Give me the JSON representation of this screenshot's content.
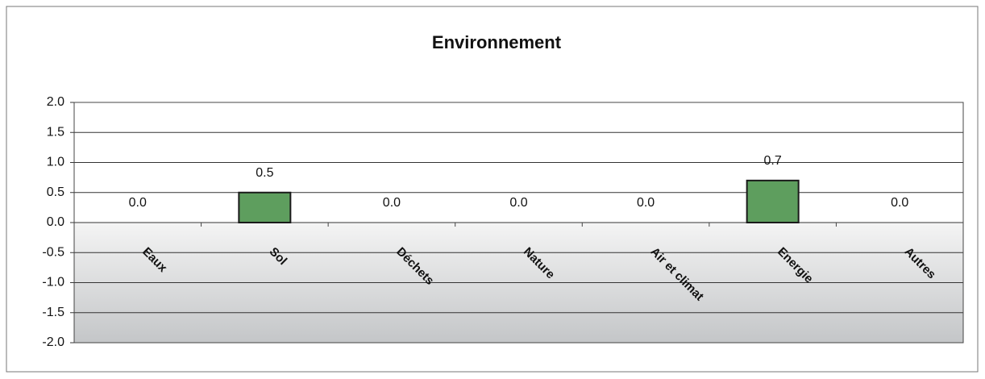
{
  "chart_data": {
    "type": "bar",
    "title": "Environnement",
    "categories": [
      "Eaux",
      "Sol",
      "Déchets",
      "Nature",
      "Air et climat",
      "Energie",
      "Autres"
    ],
    "values": [
      0,
      0.5,
      0,
      0,
      0,
      0.7,
      0
    ],
    "value_labels": [
      "0.0",
      "0.5",
      "0.0",
      "0.0",
      "0.0",
      "0.7",
      "0.0"
    ],
    "color": "#5e9e5e",
    "ylim": [
      -2,
      2
    ],
    "yticks": [
      {
        "value": -2,
        "label": "-2.0"
      },
      {
        "value": -1.5,
        "label": "-1.5"
      },
      {
        "value": -1,
        "label": "-1.0"
      },
      {
        "value": -0.5,
        "label": "-0.5"
      },
      {
        "value": 0,
        "label": "0.0"
      },
      {
        "value": 0.5,
        "label": "0.5"
      },
      {
        "value": 1,
        "label": "1.0"
      },
      {
        "value": 1.5,
        "label": "1.5"
      },
      {
        "value": 2,
        "label": "2.0"
      }
    ],
    "grid": true
  }
}
